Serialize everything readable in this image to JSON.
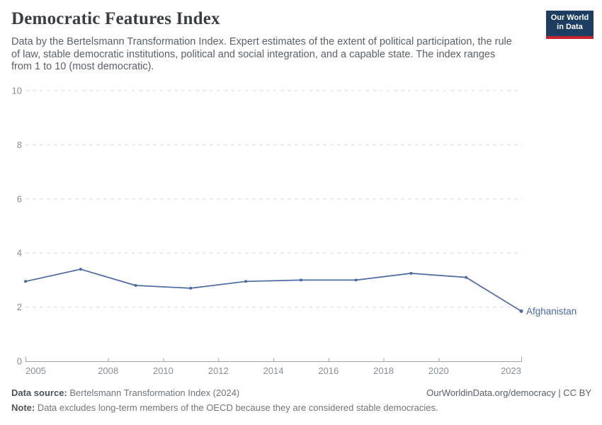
{
  "header": {
    "title": "Democratic Features Index",
    "subtitle": "Data by the Bertelsmann Transformation Index. Expert estimates of the extent of political participation, the rule\nof law, stable democratic institutions, political and social integration, and a capable state. The index ranges\nfrom 1 to 10 (most democratic).",
    "logo": {
      "line1": "Our World",
      "line2": "in Data",
      "bg_color": "#1d3d63",
      "accent_color": "#c5252d"
    }
  },
  "chart_data": {
    "type": "line",
    "title": "Democratic Features Index",
    "xlabel": "",
    "ylabel": "",
    "x": [
      2005,
      2007,
      2009,
      2011,
      2013,
      2015,
      2017,
      2019,
      2021,
      2023
    ],
    "series": [
      {
        "name": "Afghanistan",
        "values": [
          2.95,
          3.4,
          2.8,
          2.7,
          2.95,
          3.0,
          3.0,
          3.25,
          3.1,
          1.85
        ],
        "color": "#4a69a5"
      }
    ],
    "x_ticks": [
      2005,
      2008,
      2010,
      2012,
      2014,
      2016,
      2018,
      2020,
      2023
    ],
    "y_ticks": [
      0,
      2,
      4,
      6,
      8,
      10
    ],
    "xlim": [
      2005,
      2023
    ],
    "ylim": [
      0,
      10
    ],
    "grid": "horizontal-dashed",
    "legend_position": "end-of-line-label",
    "colors": {
      "gridline": "#dcdcdc",
      "axis_line": "#a0a4a8",
      "tick_label": "#8a8f94"
    }
  },
  "footer": {
    "data_source_label": "Data source:",
    "data_source_value": " Bertelsmann Transformation Index (2024)",
    "right_text": "OurWorldinData.org/democracy | CC BY",
    "note_label": "Note:",
    "note_value": " Data excludes long-term members of the OECD because they are considered stable democracies."
  }
}
